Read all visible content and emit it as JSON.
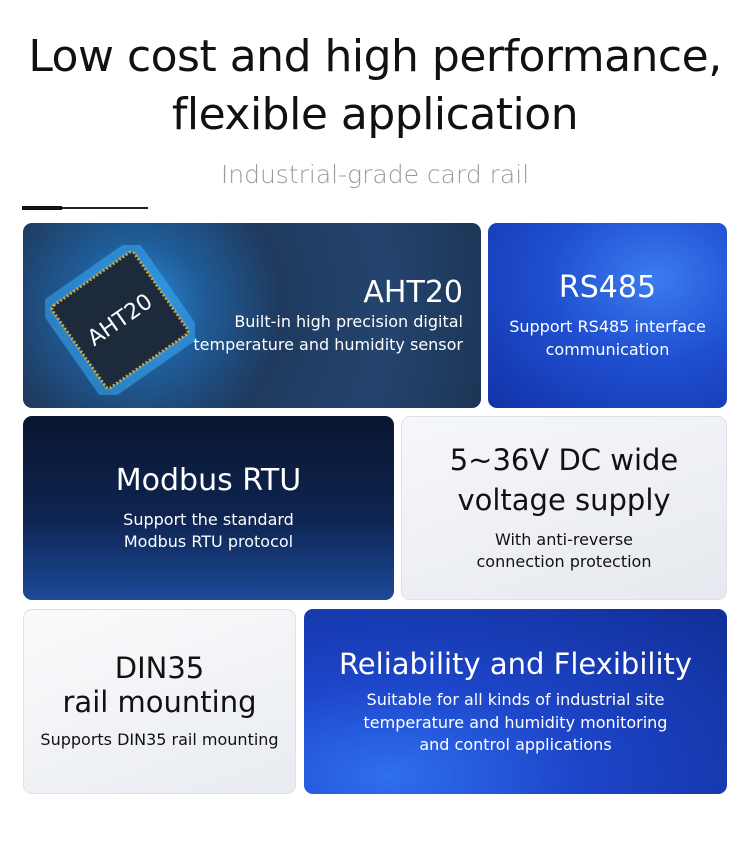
{
  "header": {
    "title_line1": "Low cost and high performance,",
    "title_line2": "flexible application",
    "subtitle": "Industrial-grade card rail"
  },
  "cards": [
    {
      "title": "AHT20",
      "desc_line1": "Built-in high precision digital",
      "desc_line2": "temperature and humidity sensor",
      "chip_label": "AHT20"
    },
    {
      "title": "RS485",
      "desc_line1": "Support RS485 interface",
      "desc_line2": "communication"
    },
    {
      "title": "Modbus RTU",
      "desc_line1": "Support the standard",
      "desc_line2": "Modbus RTU protocol"
    },
    {
      "title_line1": "5~36V DC wide",
      "title_line2": "voltage supply",
      "desc_line1": "With anti-reverse",
      "desc_line2": "connection protection"
    },
    {
      "title_line1": "DIN35",
      "title_line2": "rail mounting",
      "desc_line1": "Supports DIN35 rail mounting"
    },
    {
      "title": "Reliability and Flexibility",
      "desc_line1": "Suitable for all kinds of industrial site",
      "desc_line2": "temperature and humidity monitoring",
      "desc_line3": "and control applications"
    }
  ]
}
